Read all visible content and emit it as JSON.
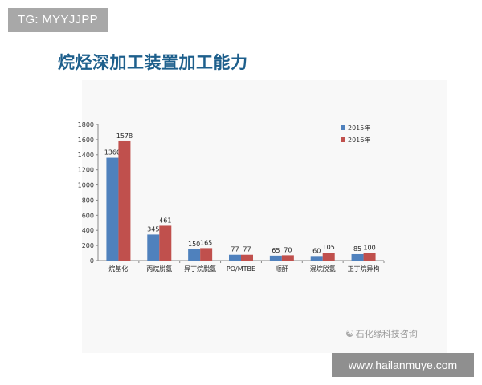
{
  "badge": {
    "text": "TG: MYYJJPP"
  },
  "title": "烷烃深加工装置加工能力",
  "watermark": {
    "icon": "wechat-icon",
    "text": "石化缘科技咨询"
  },
  "site": {
    "text": "www.hailanmuye.com"
  },
  "colors": {
    "series_2015": "#4f81bd",
    "series_2016": "#c0504d",
    "title": "#1d5f8c"
  },
  "chart_data": {
    "type": "bar",
    "title": "",
    "xlabel": "",
    "ylabel": "",
    "categories": [
      "烷基化",
      "丙烷脱氢",
      "异丁烷脱氢",
      "PO/MTBE",
      "顺酐",
      "混烷脱氢",
      "正丁烷异构"
    ],
    "series": [
      {
        "name": "2015年",
        "values": [
          1360,
          345,
          150,
          77,
          65,
          60,
          85
        ]
      },
      {
        "name": "2016年",
        "values": [
          1578,
          461,
          165,
          77,
          70,
          105,
          100
        ]
      }
    ],
    "ylim": [
      0,
      1800
    ],
    "yticks": [
      0,
      200,
      400,
      600,
      800,
      1000,
      1200,
      1400,
      1600,
      1800
    ],
    "grid": false,
    "legend_position": "top-right"
  }
}
